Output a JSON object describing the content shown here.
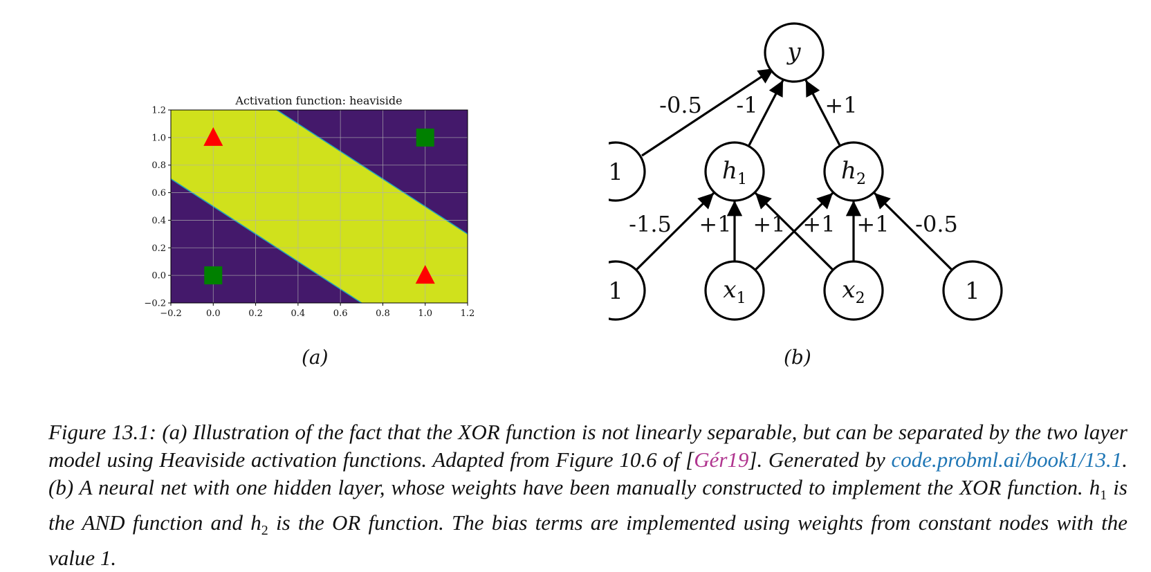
{
  "chart_data": {
    "type": "heatmap",
    "title": "Activation function: heaviside",
    "xlabel": "",
    "ylabel": "",
    "xlim": [
      -0.2,
      1.2
    ],
    "ylim": [
      -0.2,
      1.2
    ],
    "x_ticks": [
      "−0.2",
      "0.0",
      "0.2",
      "0.4",
      "0.6",
      "0.8",
      "1.0",
      "1.2"
    ],
    "y_ticks": [
      "−0.2",
      "0.0",
      "0.2",
      "0.4",
      "0.6",
      "0.8",
      "1.0",
      "1.2"
    ],
    "grid": true,
    "regions": {
      "outside_color": "#44196b",
      "band_color": "#d0e11c",
      "band_lower_boundary": "x1 + x2 = 0.5",
      "band_upper_boundary": "x1 + x2 = 1.5",
      "boundary_color": "#21a3b8"
    },
    "points": [
      {
        "x": 0,
        "y": 0,
        "marker": "square",
        "class": "0",
        "color": "#008000"
      },
      {
        "x": 1,
        "y": 1,
        "marker": "square",
        "class": "0",
        "color": "#008000"
      },
      {
        "x": 0,
        "y": 1,
        "marker": "triangle",
        "class": "1",
        "color": "#ff0000"
      },
      {
        "x": 1,
        "y": 0,
        "marker": "triangle",
        "class": "1",
        "color": "#ff0000"
      }
    ]
  },
  "diagram": {
    "nodes": {
      "y": "y",
      "bias_hidden": "1",
      "h1": "h",
      "h1_sub": "1",
      "h2": "h",
      "h2_sub": "2",
      "bias_in_left": "1",
      "x1": "x",
      "x1_sub": "1",
      "x2": "x",
      "x2_sub": "2",
      "bias_in_right": "1"
    },
    "weights": {
      "bias_to_y": "-0.5",
      "h1_to_y": "-1",
      "h2_to_y": "+1",
      "bias_to_h1": "-1.5",
      "x1_to_h1": "+1",
      "x2_to_h1": "+1",
      "x1_to_h2": "+1",
      "x2_to_h2": "+1",
      "bias_to_h2": "-0.5"
    }
  },
  "sublabels": {
    "a": "(a)",
    "b": "(b)"
  },
  "caption": {
    "lead": "Figure 13.1: (a) Illustration of the fact that the XOR function is not linearly separable, but can be separated by the two layer model using Heaviside activation functions. Adapted from Figure 10.6 of [",
    "cite": "Gér19",
    "mid1": "]. Generated by ",
    "link": "code.probml.ai/book1/13.1",
    "mid2": ". (b) A neural net with one hidden layer, whose weights have been manually constructed to implement the XOR function. ",
    "h1_base": "h",
    "h1_sub": "1",
    "mid3": " is the AND function and ",
    "h2_base": "h",
    "h2_sub": "2",
    "tail": " is the OR function. The bias terms are implemented using weights from constant nodes with the value 1."
  }
}
